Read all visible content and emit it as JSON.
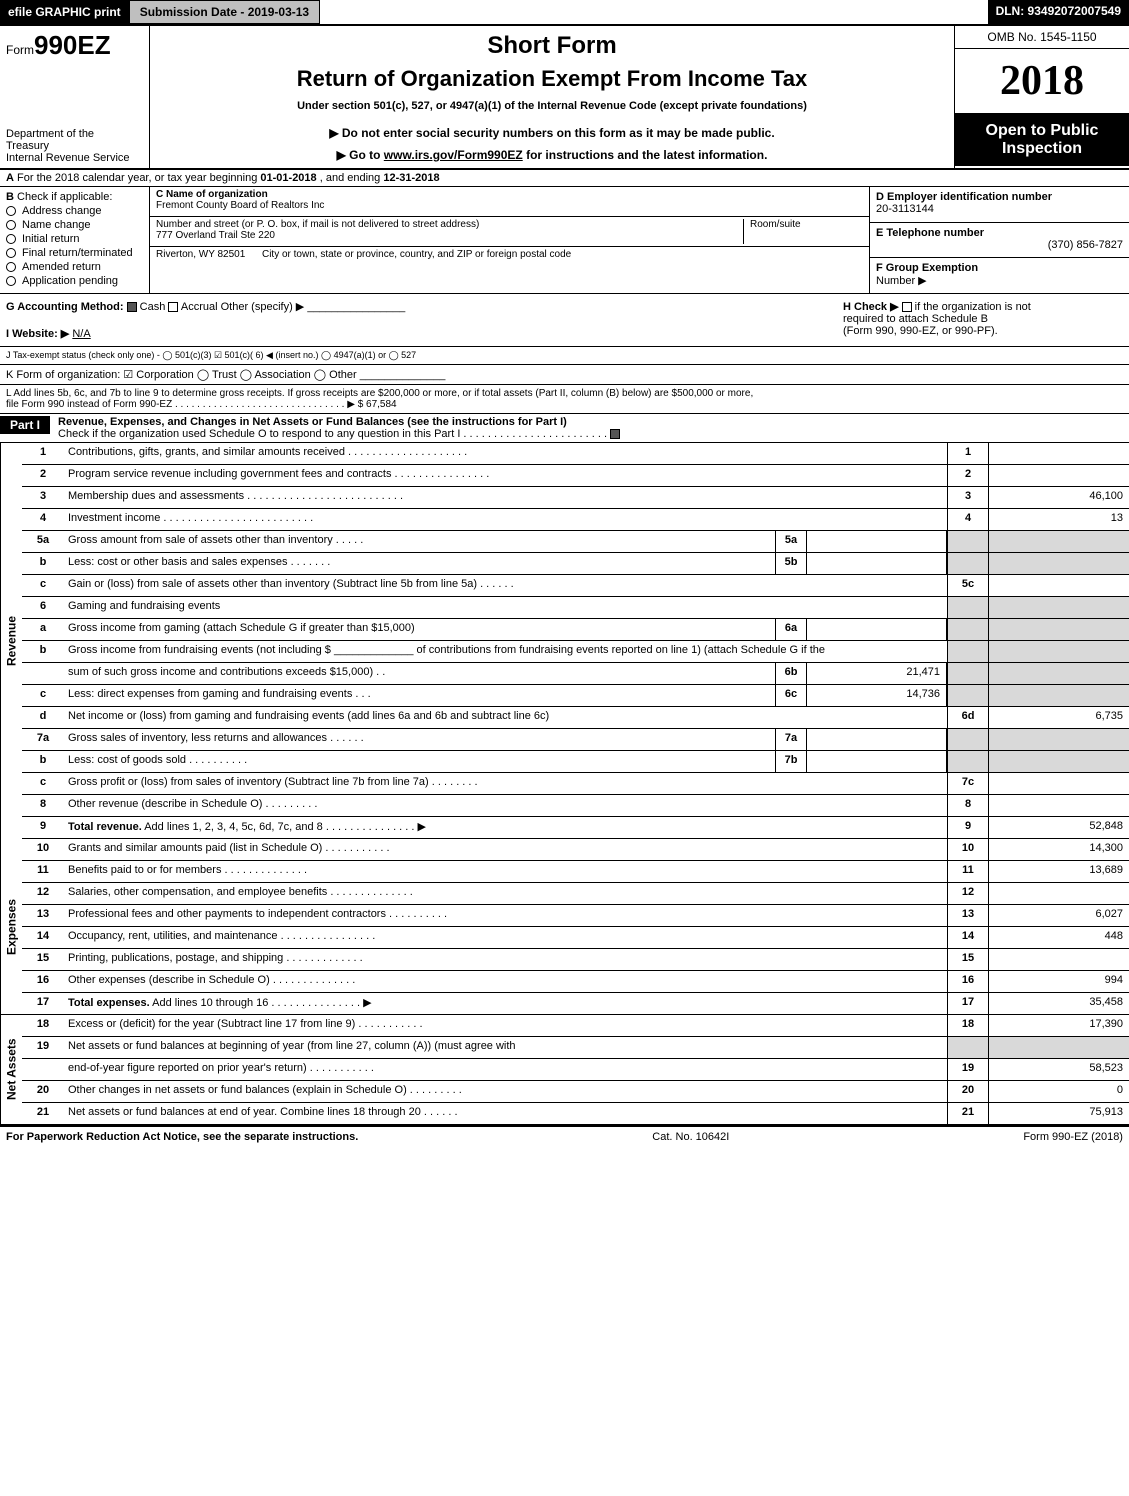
{
  "topbar": {
    "efile": "efile GRAPHIC print",
    "subdate": "Submission Date - 2019-03-13",
    "dln": "DLN: 93492072007549"
  },
  "header": {
    "form_prefix": "Form",
    "form_no": "990EZ",
    "short_form": "Short Form",
    "title": "Return of Organization Exempt From Income Tax",
    "under": "Under section 501(c), 527, or 4947(a)(1) of the Internal Revenue Code (except private foundations)",
    "donot": "▶ Do not enter social security numbers on this form as it may be made public.",
    "goto_pre": "▶ Go to ",
    "goto_link": "www.irs.gov/Form990EZ",
    "goto_post": " for instructions and the latest information.",
    "dept1": "Department of the",
    "dept2": "Treasury",
    "dept3": "Internal Revenue Service",
    "omb": "OMB No. 1545-1150",
    "year": "2018",
    "open1": "Open to Public",
    "open2": "Inspection"
  },
  "row_a": {
    "a": "A",
    "text_pre": "For the 2018 calendar year, or tax year beginning ",
    "begin": "01-01-2018",
    "mid": " , and ending ",
    "end": "12-31-2018"
  },
  "sec_b": {
    "label": "B",
    "head": "Check if applicable:",
    "opts": [
      "Address change",
      "Name change",
      "Initial return",
      "Final return/terminated",
      "Amended return",
      "Application pending"
    ]
  },
  "sec_c": {
    "c_label": "C Name of organization",
    "c_name": "Fremont County Board of Realtors Inc",
    "addr_label": "Number and street (or P. O. box, if mail is not delivered to street address)",
    "addr": "777 Overland Trail Ste 220",
    "room_label": "Room/suite",
    "city_label": "City or town, state or province, country, and ZIP or foreign postal code",
    "city": "Riverton, WY  82501"
  },
  "sec_d": {
    "d_label": "D Employer identification number",
    "ein": "20-3113144",
    "e_label": "E Telephone number",
    "phone": "(370) 856-7827",
    "f_label": "F Group Exemption",
    "f_label2": "Number ▶"
  },
  "sec_g": {
    "g": "G Accounting Method:",
    "cash": "Cash",
    "accrual": "Accrual",
    "other": "Other (specify) ▶",
    "iweb": "I Website: ▶",
    "iweb_val": "N/A",
    "h_pre": "H  Check ▶",
    "h_post": " if the organization is not",
    "h_line2": "required to attach Schedule B",
    "h_line3": "(Form 990, 990-EZ, or 990-PF)."
  },
  "line_j": "J Tax-exempt status (check only one) - ◯ 501(c)(3) ☑ 501(c)( 6) ◀ (insert no.) ◯ 4947(a)(1) or ◯ 527",
  "line_k": "K Form of organization: ☑ Corporation  ◯ Trust  ◯ Association  ◯ Other",
  "line_l": {
    "text": "L Add lines 5b, 6c, and 7b to line 9 to determine gross receipts. If gross receipts are $200,000 or more, or if total assets (Part II, column (B) below) are $500,000 or more,",
    "text2": "file Form 990 instead of Form 990-EZ  . . . . . . . . . . . . . . . . . . . . . . . . . . . . . . . ▶",
    "amt": "$ 67,584"
  },
  "part1": {
    "hdr": "Part I",
    "title": "Revenue, Expenses, and Changes in Net Assets or Fund Balances (see the instructions for Part I)",
    "sub": "Check if the organization used Schedule O to respond to any question in this Part I . . . . . . . . . . . . . . . . . . . . . . . .",
    "side_rev": "Revenue",
    "side_exp": "Expenses",
    "side_na": "Net Assets"
  },
  "rows": [
    {
      "n": "1",
      "d": "Contributions, gifts, grants, and similar amounts received  . . . . . . . . . . . . . . . . . . . .",
      "rn": "1",
      "rv": ""
    },
    {
      "n": "2",
      "d": "Program service revenue including government fees and contracts  . . . . . . . . . . . . . . . .",
      "rn": "2",
      "rv": ""
    },
    {
      "n": "3",
      "d": "Membership dues and assessments  . . . . . . . . . . . . . . . . . . . . . . . . . .",
      "rn": "3",
      "rv": "46,100"
    },
    {
      "n": "4",
      "d": "Investment income  . . . . . . . . . . . . . . . . . . . . . . . . .",
      "rn": "4",
      "rv": "13"
    },
    {
      "n": "5a",
      "d": "Gross amount from sale of assets other than inventory  . . . . .",
      "mn": "5a",
      "mv": "",
      "rn_shade": true
    },
    {
      "n": "b",
      "d": "Less: cost or other basis and sales expenses  . . . . . . .",
      "mn": "5b",
      "mv": "",
      "rn_shade": true
    },
    {
      "n": "c",
      "d": "Gain or (loss) from sale of assets other than inventory (Subtract line 5b from line 5a)            .  .  .  .  .  .",
      "rn": "5c",
      "rv": ""
    },
    {
      "n": "6",
      "d": "Gaming and fundraising events",
      "rn_shade": true
    },
    {
      "n": "a",
      "d": "Gross income from gaming (attach Schedule G if greater than $15,000)",
      "mn": "6a",
      "mv": "",
      "rn_shade": true
    },
    {
      "n": "b",
      "d": "Gross income from fundraising events (not including $ _____________ of contributions from fundraising events reported on line 1) (attach Schedule G if the",
      "rn_shade": true
    },
    {
      "n": "",
      "d": "sum of such gross income and contributions exceeds $15,000)        .  .",
      "mn": "6b",
      "mv": "21,471",
      "rn_shade": true
    },
    {
      "n": "c",
      "d": "Less: direct expenses from gaming and fundraising events        .  .  .",
      "mn": "6c",
      "mv": "14,736",
      "rn_shade": true
    },
    {
      "n": "d",
      "d": "Net income or (loss) from gaming and fundraising events (add lines 6a and 6b and subtract line 6c)",
      "rn": "6d",
      "rv": "6,735"
    },
    {
      "n": "7a",
      "d": "Gross sales of inventory, less returns and allowances          .  .  .  .  .  .",
      "mn": "7a",
      "mv": "",
      "rn_shade": true
    },
    {
      "n": "b",
      "d": "Less: cost of goods sold                    .  .  .  .  .  .  .  .  .  .",
      "mn": "7b",
      "mv": "",
      "rn_shade": true
    },
    {
      "n": "c",
      "d": "Gross profit or (loss) from sales of inventory (Subtract line 7b from line 7a)          .  .  .  .  .  .  .  .",
      "rn": "7c",
      "rv": ""
    },
    {
      "n": "8",
      "d": "Other revenue (describe in Schedule O)                .  .  .  .  .  .  .  .  .",
      "rn": "8",
      "rv": ""
    },
    {
      "n": "9",
      "d": "Total revenue. Add lines 1, 2, 3, 4, 5c, 6d, 7c, and 8        .  .  .  .  .  .  .  .  .  .  .  .  .  .  .  ▶",
      "rn": "9",
      "rv": "52,848",
      "bold": true
    },
    {
      "n": "10",
      "d": "Grants and similar amounts paid (list in Schedule O)          .  .  .  .  .  .  .  .  .  .  .",
      "rn": "10",
      "rv": "14,300"
    },
    {
      "n": "11",
      "d": "Benefits paid to or for members              .  .  .  .  .  .  .  .  .  .  .  .  .  .",
      "rn": "11",
      "rv": "13,689"
    },
    {
      "n": "12",
      "d": "Salaries, other compensation, and employee benefits      .  .  .  .  .  .  .  .  .  .  .  .  .  .",
      "rn": "12",
      "rv": ""
    },
    {
      "n": "13",
      "d": "Professional fees and other payments to independent contractors      .  .  .  .  .  .  .  .  .  .",
      "rn": "13",
      "rv": "6,027"
    },
    {
      "n": "14",
      "d": "Occupancy, rent, utilities, and maintenance      .  .  .  .  .  .  .  .  .  .  .  .  .  .  .  .",
      "rn": "14",
      "rv": "448"
    },
    {
      "n": "15",
      "d": "Printing, publications, postage, and shipping          .  .  .  .  .  .  .  .  .  .  .  .  .",
      "rn": "15",
      "rv": ""
    },
    {
      "n": "16",
      "d": "Other expenses (describe in Schedule O)          .  .  .  .  .  .  .  .  .  .  .  .  .  .",
      "rn": "16",
      "rv": "994"
    },
    {
      "n": "17",
      "d": "Total expenses. Add lines 10 through 16          .  .  .  .  .  .  .  .  .  .  .  .  .  .  .  ▶",
      "rn": "17",
      "rv": "35,458",
      "bold": true
    },
    {
      "n": "18",
      "d": "Excess or (deficit) for the year (Subtract line 17 from line 9)        .  .  .  .  .  .  .  .  .  .  .",
      "rn": "18",
      "rv": "17,390"
    },
    {
      "n": "19",
      "d": "Net assets or fund balances at beginning of year (from line 27, column (A)) (must agree with",
      "rn_shade": true
    },
    {
      "n": "",
      "d": "end-of-year figure reported on prior year's return)          .  .  .  .  .  .  .  .  .  .  .",
      "rn": "19",
      "rv": "58,523"
    },
    {
      "n": "20",
      "d": "Other changes in net assets or fund balances (explain in Schedule O)      .  .  .  .  .  .  .  .  .",
      "rn": "20",
      "rv": "0"
    },
    {
      "n": "21",
      "d": "Net assets or fund balances at end of year. Combine lines 18 through 20        .  .  .  .  .  .",
      "rn": "21",
      "rv": "75,913"
    }
  ],
  "side_spans": {
    "revenue_rows": 18,
    "expenses_rows": 8,
    "netassets_rows": 5
  },
  "footer": {
    "left": "For Paperwork Reduction Act Notice, see the separate instructions.",
    "mid": "Cat. No. 10642I",
    "right": "Form 990-EZ (2018)"
  }
}
